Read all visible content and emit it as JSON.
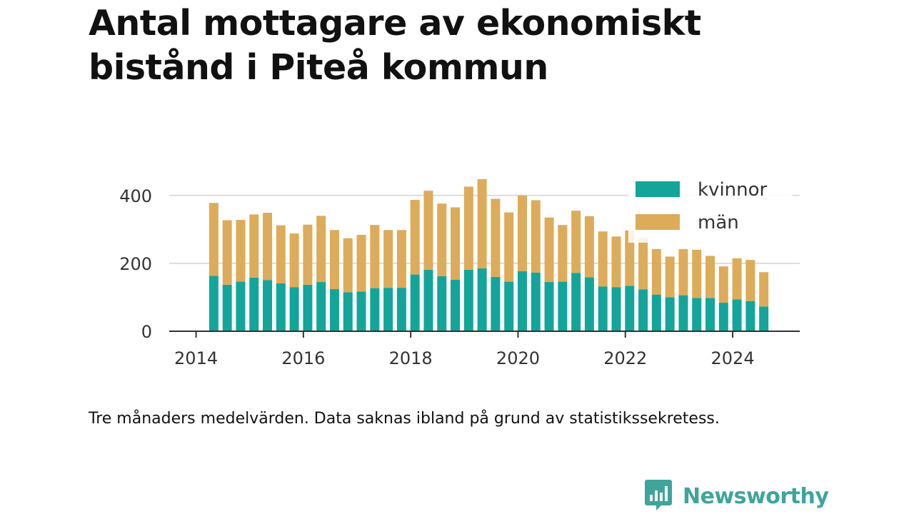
{
  "title": "Antal mottagare av ekonomiskt bistånd i Piteå kommun",
  "footnote": "Tre månaders medelvärden. Data saknas ibland på grund av statistikssekretess.",
  "logo": {
    "text": "Newsworthy",
    "icon": "bar-chart-speech-bubble-icon",
    "color": "#3fa59b"
  },
  "chart_data": {
    "type": "bar",
    "stacked": true,
    "grid": true,
    "legend_position": "top-right",
    "x_ticks": [
      "2014",
      "2016",
      "2018",
      "2020",
      "2022",
      "2024"
    ],
    "x_tick_values": [
      2014,
      2016,
      2018,
      2020,
      2022,
      2024
    ],
    "xlim": [
      2013.5,
      2025.25
    ],
    "y_ticks": [
      "0",
      "200",
      "400"
    ],
    "ylim": [
      0,
      450
    ],
    "x": [
      2014.33,
      2014.58,
      2014.83,
      2015.08,
      2015.33,
      2015.58,
      2015.83,
      2016.08,
      2016.33,
      2016.58,
      2016.83,
      2017.08,
      2017.33,
      2017.58,
      2017.83,
      2018.08,
      2018.33,
      2018.58,
      2018.83,
      2019.08,
      2019.33,
      2019.58,
      2019.83,
      2020.08,
      2020.33,
      2020.58,
      2020.83,
      2021.08,
      2021.33,
      2021.58,
      2021.83,
      2022.08,
      2022.33,
      2022.58,
      2022.83,
      2023.08,
      2023.33,
      2023.58,
      2023.83,
      2024.08,
      2024.33,
      2024.58
    ],
    "series": [
      {
        "name": "kvinnor",
        "color": "#13a599",
        "values": [
          163,
          137,
          146,
          158,
          151,
          141,
          130,
          137,
          145,
          124,
          115,
          117,
          127,
          128,
          128,
          167,
          181,
          162,
          152,
          181,
          185,
          160,
          146,
          177,
          173,
          145,
          146,
          172,
          159,
          132,
          130,
          134,
          123,
          108,
          100,
          106,
          98,
          98,
          84,
          94,
          89,
          73
        ]
      },
      {
        "name": "män",
        "color": "#ddac5a",
        "values": [
          215,
          190,
          182,
          186,
          198,
          171,
          158,
          177,
          195,
          174,
          159,
          167,
          186,
          170,
          170,
          220,
          233,
          214,
          213,
          245,
          263,
          230,
          204,
          223,
          213,
          190,
          167,
          183,
          180,
          162,
          149,
          163,
          152,
          134,
          120,
          136,
          142,
          124,
          107,
          121,
          121,
          101
        ]
      }
    ]
  }
}
